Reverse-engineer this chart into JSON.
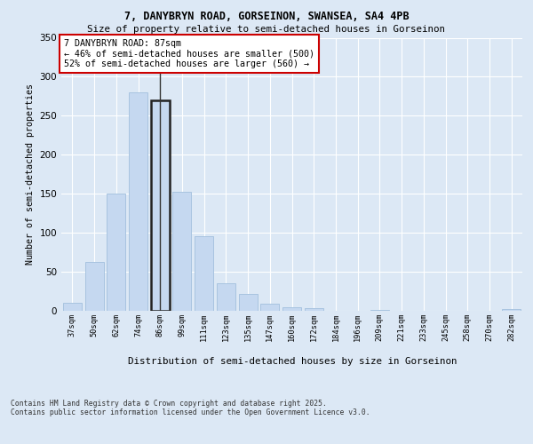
{
  "title_line1": "7, DANYBRYN ROAD, GORSEINON, SWANSEA, SA4 4PB",
  "title_line2": "Size of property relative to semi-detached houses in Gorseinon",
  "xlabel": "Distribution of semi-detached houses by size in Gorseinon",
  "ylabel": "Number of semi-detached properties",
  "categories": [
    "37sqm",
    "50sqm",
    "62sqm",
    "74sqm",
    "86sqm",
    "99sqm",
    "111sqm",
    "123sqm",
    "135sqm",
    "147sqm",
    "160sqm",
    "172sqm",
    "184sqm",
    "196sqm",
    "209sqm",
    "221sqm",
    "233sqm",
    "245sqm",
    "258sqm",
    "270sqm",
    "282sqm"
  ],
  "values": [
    10,
    63,
    150,
    280,
    270,
    152,
    96,
    35,
    22,
    9,
    4,
    3,
    0,
    0,
    1,
    0,
    0,
    0,
    0,
    0,
    2
  ],
  "bar_color": "#c5d8f0",
  "bar_edge_color": "#a8c4e0",
  "highlight_bar_index": 4,
  "highlight_bar_edge_color": "#222222",
  "annotation_text": "7 DANYBRYN ROAD: 87sqm\n← 46% of semi-detached houses are smaller (500)\n52% of semi-detached houses are larger (560) →",
  "annotation_box_color": "#ffffff",
  "annotation_box_edge_color": "#cc0000",
  "ylim": [
    0,
    350
  ],
  "yticks": [
    0,
    50,
    100,
    150,
    200,
    250,
    300,
    350
  ],
  "footer_text": "Contains HM Land Registry data © Crown copyright and database right 2025.\nContains public sector information licensed under the Open Government Licence v3.0.",
  "bg_color": "#dce8f5",
  "plot_bg_color": "#dce8f5"
}
